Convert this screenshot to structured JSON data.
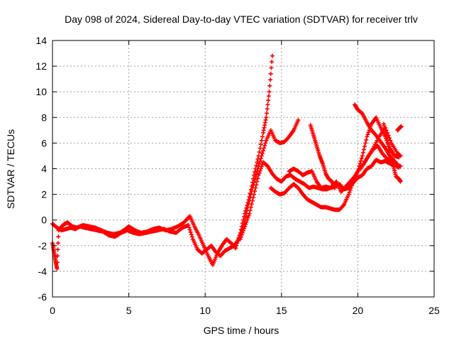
{
  "chart_data": {
    "type": "scatter",
    "title": "Day 098 of 2024, Sidereal Day-to-day VTEC variation (SDTVAR) for receiver trlv",
    "xlabel": "GPS time / hours",
    "ylabel": "SDTVAR / TECUs",
    "xlim": [
      0,
      25
    ],
    "ylim": [
      -6,
      14
    ],
    "xticks": [
      "0",
      "5",
      "10",
      "15",
      "20",
      "25"
    ],
    "yticks": [
      "-6",
      "-4",
      "-2",
      "0",
      "2",
      "4",
      "6",
      "8",
      "10",
      "12",
      "14"
    ],
    "grid": true,
    "marker": "+",
    "color": "#ff0000",
    "series": [
      {
        "x": [
          0.0,
          0.1,
          0.2,
          0.3,
          0.4,
          0.6,
          0.8,
          1.0,
          1.3,
          1.6,
          2.0,
          2.4,
          2.8,
          3.2,
          3.6,
          4.0,
          4.4,
          4.8,
          5.0,
          5.4,
          5.8,
          6.2,
          6.6,
          7.0,
          7.4,
          7.8,
          8.2,
          8.6,
          9.0,
          9.3,
          9.6,
          9.9,
          10.2,
          10.5,
          10.8,
          11.1,
          11.4,
          11.7,
          12.0,
          12.3,
          12.6,
          12.9,
          13.2,
          13.5,
          13.8,
          14.0,
          14.2,
          14.4
        ],
        "y": [
          -1.8,
          -2.5,
          -3.2,
          -3.8,
          -0.8,
          -0.5,
          -0.3,
          -0.2,
          -0.5,
          -0.6,
          -0.4,
          -0.5,
          -0.6,
          -0.8,
          -1.0,
          -1.1,
          -1.0,
          -0.7,
          -0.5,
          -0.8,
          -1.0,
          -0.9,
          -0.7,
          -0.6,
          -0.8,
          -0.7,
          -0.5,
          -0.2,
          0.3,
          -0.5,
          -1.2,
          -2.0,
          -2.8,
          -3.5,
          -2.6,
          -2.0,
          -1.5,
          -1.8,
          -2.2,
          -1.0,
          0.5,
          1.8,
          3.5,
          5.0,
          6.8,
          8.0,
          10.0,
          12.8
        ]
      },
      {
        "x": [
          0.0,
          0.3,
          0.6,
          0.9,
          1.2,
          1.5,
          1.8,
          2.1,
          2.5,
          2.9,
          3.3,
          3.7,
          4.1,
          4.5,
          4.9,
          5.3,
          5.7,
          6.1,
          6.5,
          6.9,
          7.3,
          7.7,
          8.1,
          8.5,
          8.9,
          9.2,
          9.5,
          9.8,
          10.1,
          10.4,
          10.7,
          11.0,
          11.3,
          11.6,
          11.9,
          12.2,
          12.5,
          12.8,
          13.1,
          13.4,
          13.7,
          14.0,
          14.3,
          14.6,
          14.9,
          15.2,
          15.5,
          15.8,
          16.1
        ],
        "y": [
          -0.3,
          -0.6,
          -0.8,
          -0.7,
          -0.6,
          -0.7,
          -0.5,
          -0.6,
          -0.7,
          -0.8,
          -0.9,
          -1.2,
          -1.3,
          -1.0,
          -0.8,
          -1.0,
          -1.1,
          -1.0,
          -0.9,
          -0.8,
          -0.7,
          -0.9,
          -1.0,
          -0.6,
          -0.4,
          -1.5,
          -2.3,
          -2.6,
          -2.3,
          -2.0,
          -2.5,
          -2.8,
          -2.4,
          -2.2,
          -2.0,
          -1.5,
          -0.5,
          1.0,
          2.5,
          3.8,
          5.0,
          6.2,
          7.0,
          6.2,
          6.0,
          6.1,
          6.5,
          7.0,
          7.8
        ]
      },
      {
        "x": [
          12.3,
          12.6,
          12.9,
          13.2,
          13.5,
          13.8,
          14.1,
          14.4,
          14.7,
          15.0,
          15.3,
          15.6,
          15.9,
          16.2,
          16.5,
          16.8,
          17.1,
          17.4,
          17.7,
          18.0,
          18.3,
          18.6,
          18.9,
          19.2,
          19.5,
          19.8,
          20.1,
          20.4,
          20.7,
          21.0,
          21.3,
          21.6,
          21.9,
          22.2,
          22.5,
          22.8
        ],
        "y": [
          -1.5,
          -0.5,
          0.5,
          2.0,
          3.5,
          4.5,
          4.2,
          3.6,
          3.2,
          3.0,
          3.4,
          3.5,
          3.2,
          3.0,
          2.8,
          2.5,
          2.6,
          2.5,
          2.4,
          2.4,
          2.6,
          3.0,
          2.2,
          2.6,
          3.0,
          3.4,
          4.0,
          4.4,
          5.0,
          5.5,
          5.8,
          5.2,
          4.8,
          4.5,
          4.3,
          4.2
        ]
      },
      {
        "x": [
          14.3,
          14.6,
          14.9,
          15.2,
          15.5,
          15.8,
          16.1,
          16.4,
          16.7,
          17.0,
          17.3,
          17.6,
          17.9,
          18.2,
          18.5,
          18.8,
          19.1,
          19.4,
          19.7,
          20.0,
          20.3,
          20.6,
          20.9,
          21.2,
          21.5,
          21.8,
          22.1,
          22.4,
          22.7
        ],
        "y": [
          2.5,
          2.2,
          2.0,
          2.1,
          2.5,
          2.8,
          2.5,
          2.0,
          1.6,
          1.4,
          1.2,
          1.0,
          1.0,
          0.9,
          0.8,
          0.8,
          1.2,
          2.0,
          3.0,
          3.8,
          5.0,
          6.5,
          7.5,
          8.0,
          7.2,
          6.5,
          5.6,
          5.0,
          4.9
        ]
      },
      {
        "x": [
          15.5,
          15.8,
          16.1,
          16.4,
          16.7,
          17.0,
          17.3,
          17.6,
          17.9,
          18.2,
          18.5,
          18.8,
          19.1,
          19.4,
          19.7,
          20.0,
          20.3,
          20.6,
          20.9,
          21.2,
          21.5,
          21.8,
          22.1,
          22.4,
          22.7
        ],
        "y": [
          3.8,
          4.0,
          3.8,
          3.5,
          3.7,
          3.8,
          3.0,
          2.5,
          2.6,
          2.5,
          2.6,
          2.8,
          2.4,
          2.5,
          2.9,
          3.3,
          3.5,
          4.0,
          4.2,
          4.7,
          4.5,
          4.6,
          4.4,
          4.3,
          4.1
        ]
      },
      {
        "x": [
          16.9,
          17.1,
          17.3,
          17.5,
          17.7,
          17.9,
          18.1,
          18.3,
          18.5
        ],
        "y": [
          7.4,
          6.6,
          5.8,
          5.0,
          4.4,
          3.6,
          3.2,
          3.0,
          2.5
        ]
      },
      {
        "x": [
          19.8,
          20.0,
          20.3,
          20.6,
          20.9,
          21.2,
          21.5,
          21.8,
          22.1,
          22.4,
          22.7
        ],
        "y": [
          9.0,
          8.6,
          8.3,
          7.6,
          7.0,
          6.6,
          6.1,
          5.6,
          5.0,
          4.6,
          4.2
        ]
      },
      {
        "x": [
          20.2,
          20.6,
          21.0,
          21.4,
          21.8,
          22.2,
          22.6,
          22.8
        ],
        "y": [
          4.0,
          4.8,
          5.6,
          6.5,
          7.2,
          6.0,
          5.2,
          5.0
        ]
      },
      {
        "x": [
          21.7,
          21.9,
          22.1,
          22.3,
          22.5,
          22.7,
          22.8
        ],
        "y": [
          7.5,
          6.5,
          5.0,
          4.3,
          3.4,
          3.2,
          3.0
        ]
      },
      {
        "x": [
          22.6,
          22.75,
          22.85
        ],
        "y": [
          7.0,
          7.2,
          7.3
        ]
      }
    ]
  }
}
